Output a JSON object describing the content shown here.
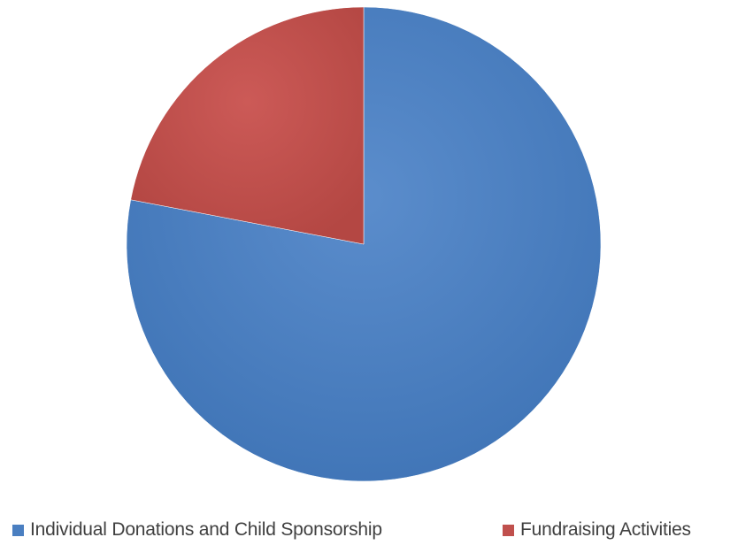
{
  "chart_data": {
    "type": "pie",
    "categories": [
      "Individual Donations and Child Sponsorship",
      "Fundraising Activities"
    ],
    "values": [
      78,
      22
    ],
    "unit": "%",
    "colors": [
      "#4a7fc1",
      "#c0504d"
    ],
    "start_angle_deg": 0,
    "direction": "clockwise",
    "title": "",
    "legend": {
      "placement": "bottom",
      "items": [
        {
          "label": "Individual Donations and Child Sponsorship",
          "color": "#4a7fc1"
        },
        {
          "label": "Fundraising Activities",
          "color": "#c0504d"
        }
      ]
    }
  }
}
